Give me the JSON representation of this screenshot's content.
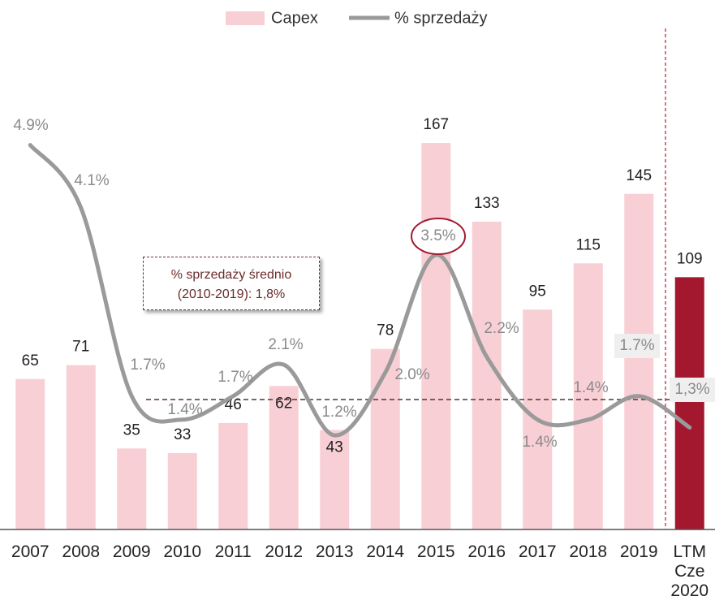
{
  "chart_data": {
    "type": "bar_line",
    "categories": [
      "2007",
      "2008",
      "2009",
      "2010",
      "2011",
      "2012",
      "2013",
      "2014",
      "2015",
      "2016",
      "2017",
      "2018",
      "2019",
      "LTM Cze 2020"
    ],
    "series": [
      {
        "name": "Capex",
        "type": "bar",
        "color": "#f8cfd5",
        "colors": [
          "#f8cfd5",
          "#f8cfd5",
          "#f8cfd5",
          "#f8cfd5",
          "#f8cfd5",
          "#f8cfd5",
          "#f8cfd5",
          "#f8cfd5",
          "#f8cfd5",
          "#f8cfd5",
          "#f8cfd5",
          "#f8cfd5",
          "#f8cfd5",
          "#a3182f"
        ],
        "values": [
          65,
          71,
          35,
          33,
          46,
          62,
          43,
          78,
          167,
          133,
          95,
          115,
          145,
          109
        ]
      },
      {
        "name": "% sprzedaży",
        "type": "line",
        "axis": "y2",
        "color": "#9a9a9a",
        "values": [
          4.9,
          4.1,
          1.7,
          1.4,
          1.7,
          2.1,
          1.2,
          2.0,
          3.5,
          2.2,
          1.4,
          1.4,
          1.7,
          1.3
        ],
        "value_labels": [
          "4.9%",
          "4.1%",
          "1.7%",
          "1.4%",
          "1.7%",
          "2.1%",
          "1.2%",
          "2.0%",
          "3.5%",
          "2.2%",
          "1.4%",
          "1.4%",
          "1.7%",
          "1,3%"
        ]
      }
    ],
    "ylim": [
      0,
      200
    ],
    "y2lim": [
      0,
      5.9
    ],
    "legend": "top",
    "annotation": [
      "% sprzedaży średnio",
      "(2010-2019): 1,8%"
    ]
  }
}
